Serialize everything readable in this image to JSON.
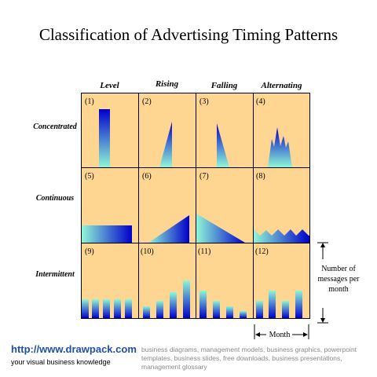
{
  "title": "Classification of Advertising Timing Patterns",
  "columns": [
    "Level",
    "Rising",
    "Falling",
    "Alternating"
  ],
  "rows": [
    "Concentrated",
    "Continuous",
    "Intermittent"
  ],
  "cells": [
    "(1)",
    "(2)",
    "(3)",
    "(4)",
    "(5)",
    "(6)",
    "(7)",
    "(8)",
    "(9)",
    "(10)",
    "(11)",
    "(12)"
  ],
  "axes": {
    "vertical_label": "Number of messages per month",
    "horizontal_label": "Month"
  },
  "colors": {
    "cell_fill": "#ffd592",
    "grid_line": "#000000",
    "shape_dark": "#0000cc",
    "shape_light": "#8ff7d6",
    "url": "#1f4fa8",
    "footer": "#8a8a8a"
  },
  "footer": {
    "url": "http://www.drawpack.com",
    "tagline": "your visual business knowledge",
    "description": "business diagrams, management models, business graphics, powerpoint templates, business slides, free downloads, business presentations, management glossary"
  }
}
